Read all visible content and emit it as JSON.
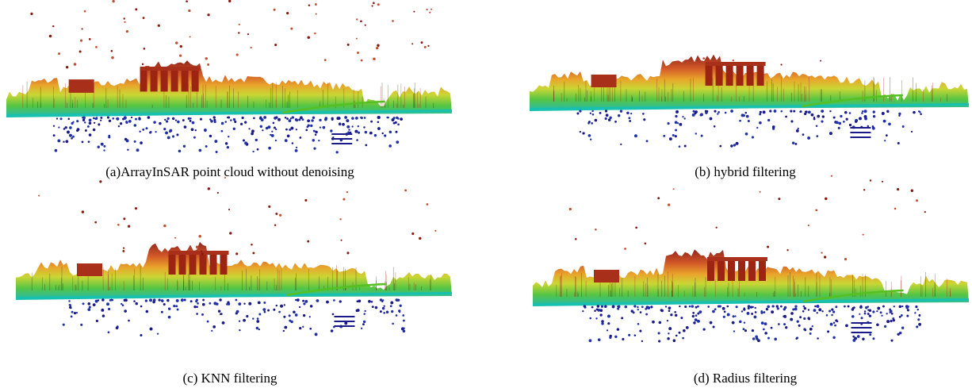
{
  "panels": [
    {
      "caption": "(a)ArrayInSAR point cloud without denoising"
    },
    {
      "caption": "(b) hybrid filtering"
    },
    {
      "caption": "(c) KNN filtering"
    },
    {
      "caption": "(d) Radius filtering"
    }
  ]
}
